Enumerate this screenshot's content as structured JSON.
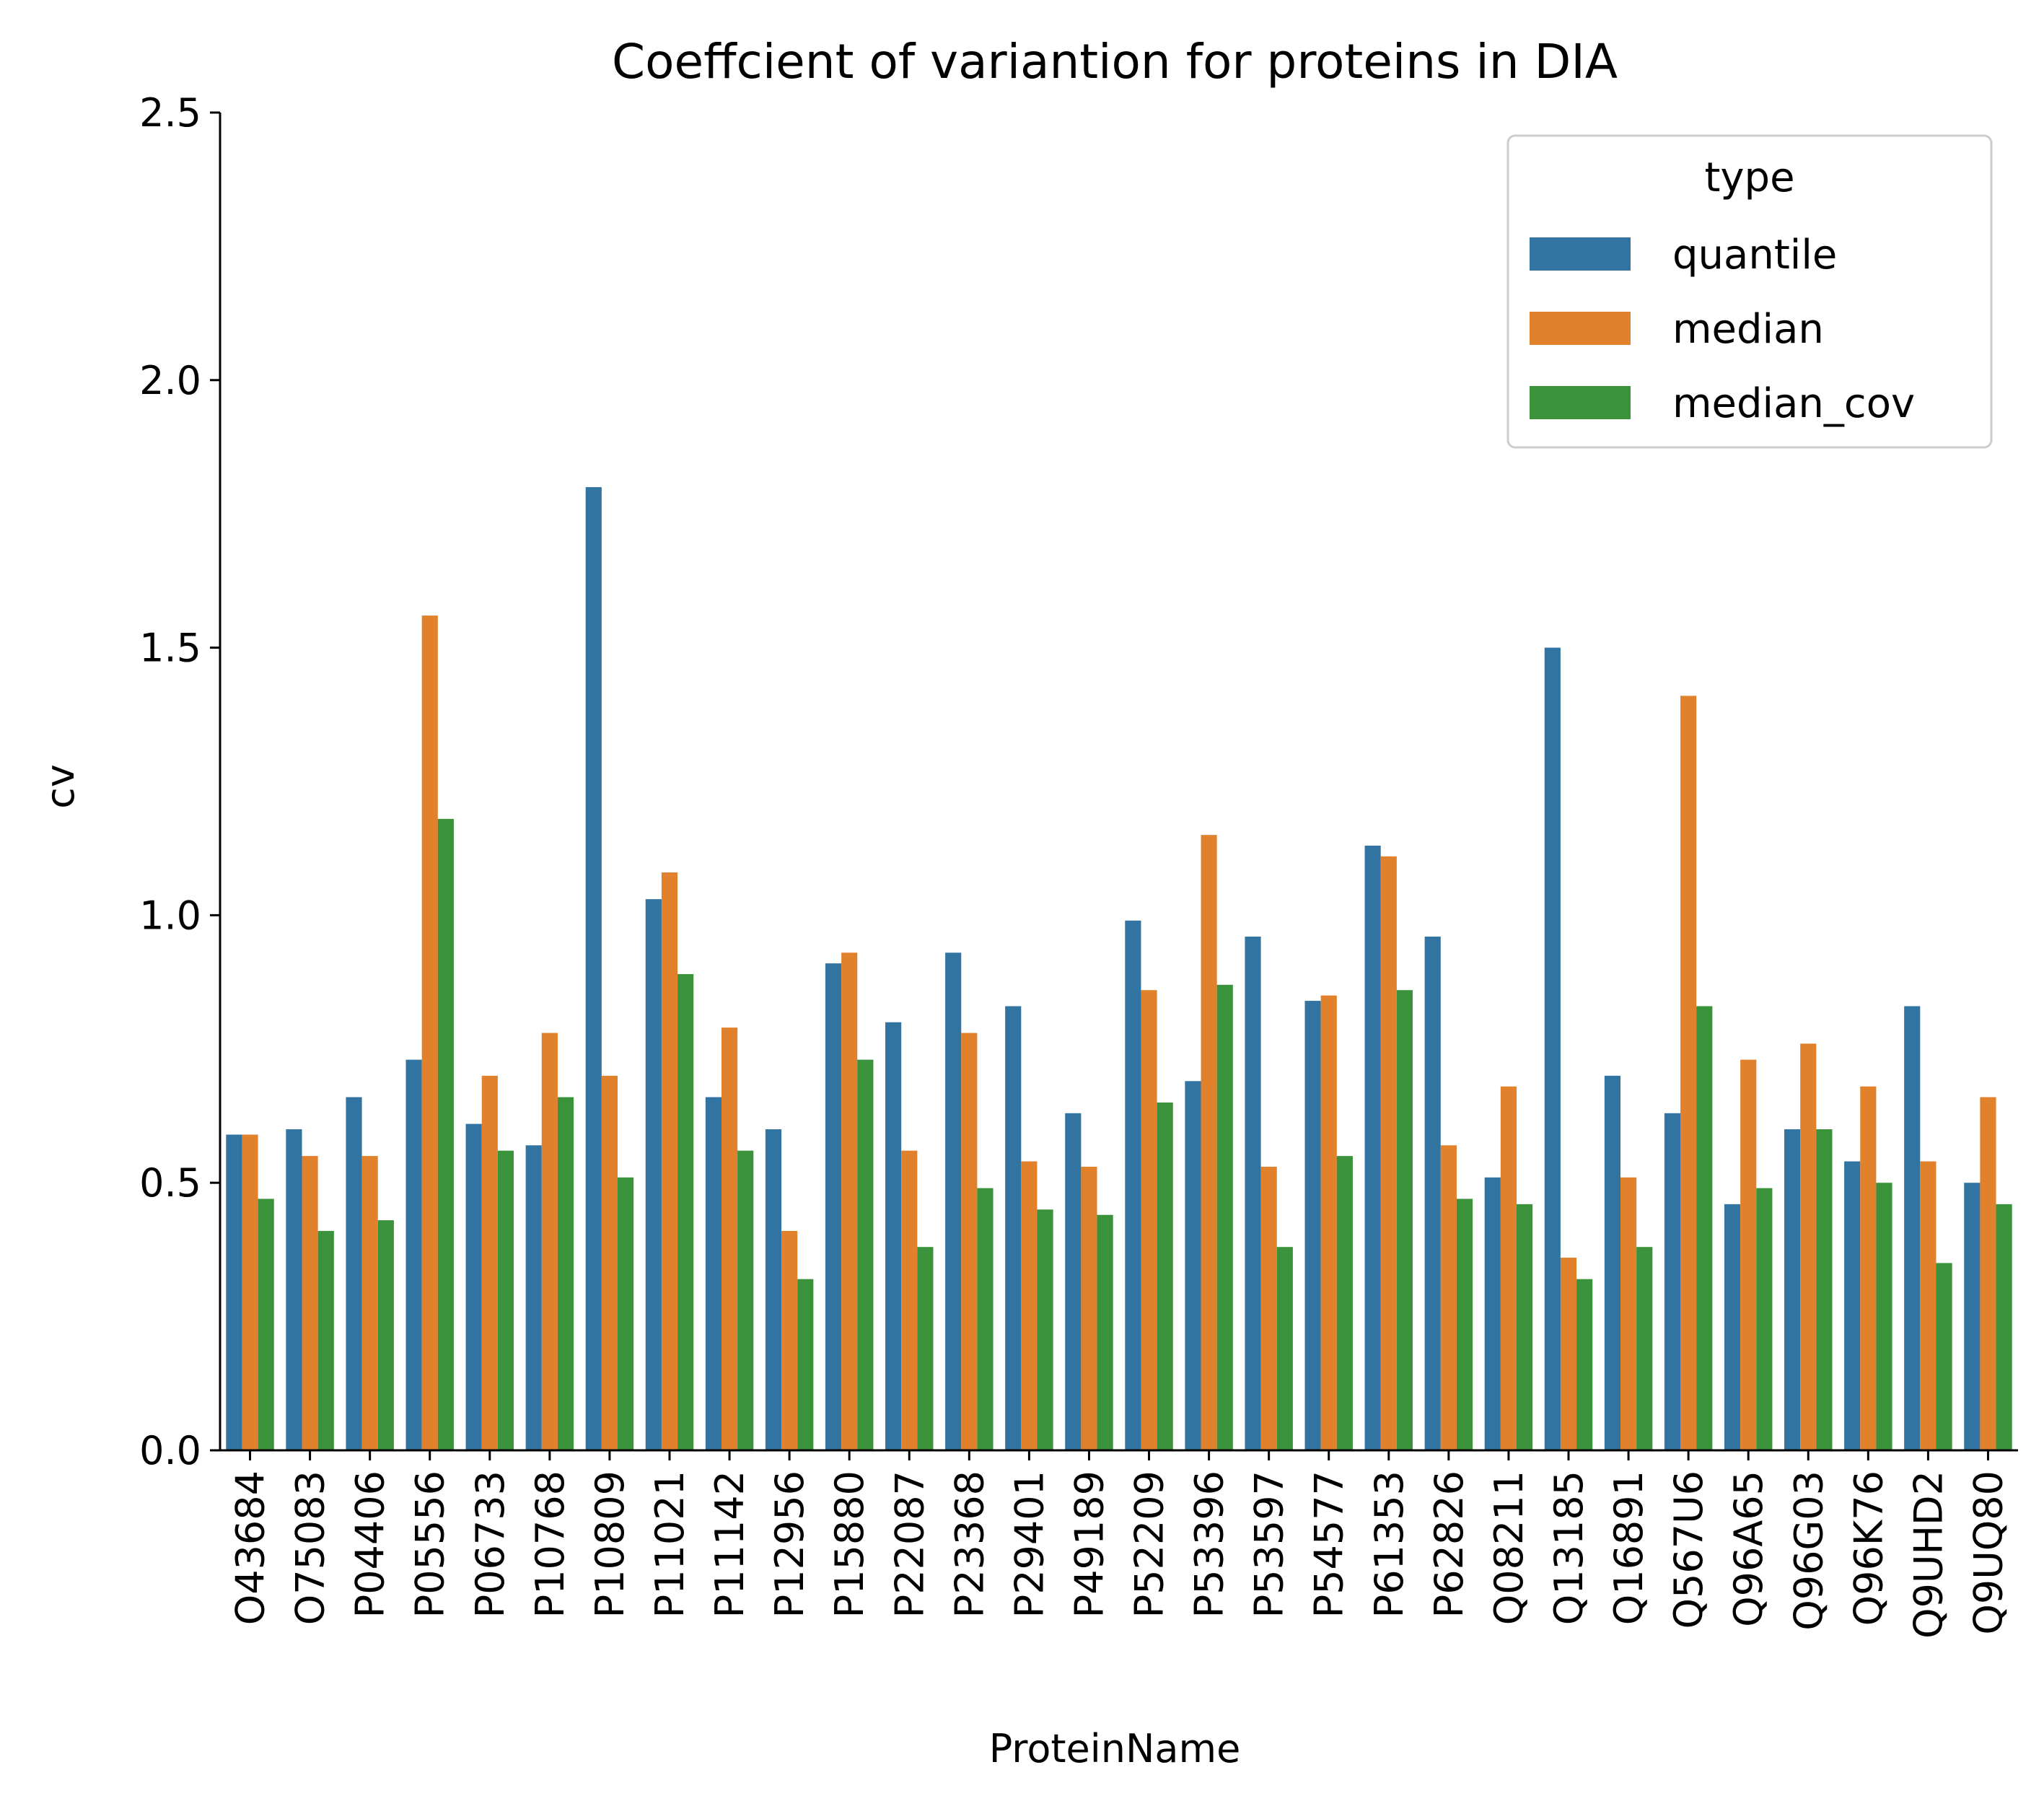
{
  "chart_data": {
    "type": "bar",
    "title": "Coeffcient of variantion for proteins in DIA",
    "xlabel": "ProteinName",
    "ylabel": "cv",
    "ylim": [
      0,
      2.5
    ],
    "yticks": [
      "0.0",
      "0.5",
      "1.0",
      "1.5",
      "2.0",
      "2.5"
    ],
    "grid": false,
    "legend": {
      "title": "type",
      "placement": "top-right"
    },
    "categories": [
      "O43684",
      "O75083",
      "P04406",
      "P05556",
      "P06733",
      "P10768",
      "P10809",
      "P11021",
      "P11142",
      "P12956",
      "P15880",
      "P22087",
      "P23368",
      "P29401",
      "P49189",
      "P52209",
      "P53396",
      "P53597",
      "P54577",
      "P61353",
      "P62826",
      "Q08211",
      "Q13185",
      "Q16891",
      "Q567U6",
      "Q96A65",
      "Q96G03",
      "Q96K76",
      "Q9UHD2",
      "Q9UQ80"
    ],
    "series": [
      {
        "name": "quantile",
        "color": "#3274a1",
        "values": [
          0.59,
          0.6,
          0.66,
          0.73,
          0.61,
          0.57,
          1.8,
          1.03,
          0.66,
          0.6,
          0.91,
          0.8,
          0.93,
          0.83,
          0.63,
          0.99,
          0.69,
          0.96,
          0.84,
          1.13,
          0.96,
          0.51,
          1.5,
          0.7,
          0.63,
          0.46,
          0.6,
          0.54,
          0.83,
          0.5
        ]
      },
      {
        "name": "median",
        "color": "#e1812c",
        "values": [
          0.59,
          0.55,
          0.55,
          1.56,
          0.7,
          0.78,
          0.7,
          1.08,
          0.79,
          0.41,
          0.93,
          0.56,
          0.78,
          0.54,
          0.53,
          0.86,
          1.15,
          0.53,
          0.85,
          1.11,
          0.57,
          0.68,
          0.36,
          0.51,
          1.41,
          0.73,
          0.76,
          0.68,
          0.54,
          0.66
        ]
      },
      {
        "name": "median_cov",
        "color": "#3a923a",
        "values": [
          0.47,
          0.41,
          0.43,
          1.18,
          0.56,
          0.66,
          0.51,
          0.89,
          0.56,
          0.32,
          0.73,
          0.38,
          0.49,
          0.45,
          0.44,
          0.65,
          0.87,
          0.38,
          0.55,
          0.86,
          0.47,
          0.46,
          0.32,
          0.38,
          0.83,
          0.49,
          0.6,
          0.5,
          0.35,
          0.46
        ]
      }
    ]
  }
}
